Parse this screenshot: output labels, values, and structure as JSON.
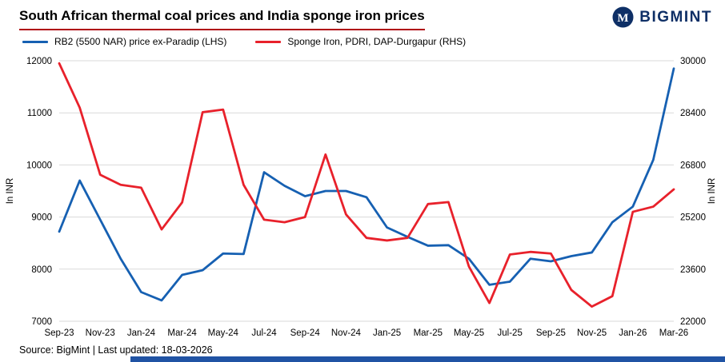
{
  "logo": {
    "text": "BIGMINT",
    "monogram": "M"
  },
  "title": "South African thermal coal prices and India sponge iron prices",
  "legend": [
    {
      "label": "RB2 (5500 NAR) price ex-Paradip (LHS)"
    },
    {
      "label": "Sponge Iron, PDRI, DAP-Durgapur (RHS)"
    }
  ],
  "footer": "Source: BigMint | Last updated: 18-03-2026",
  "colors": {
    "brand_navy": "#0e2f66",
    "coal_blue": "#1660b2",
    "sponge_red": "#e8212b",
    "title_underline": "#b00610",
    "grid": "#d9d9d9",
    "accent_bar": "#2053a4"
  },
  "chart_data": {
    "type": "line",
    "title": "South African thermal coal prices and India sponge iron prices",
    "x": [
      "Sep-23",
      "Oct-23",
      "Nov-23",
      "Dec-23",
      "Jan-24",
      "Feb-24",
      "Mar-24",
      "Apr-24",
      "May-24",
      "Jun-24",
      "Jul-24",
      "Aug-24",
      "Sep-24",
      "Oct-24",
      "Nov-24",
      "Dec-24",
      "Jan-25",
      "Feb-25",
      "Mar-25",
      "Apr-25",
      "May-25",
      "Jun-25",
      "Jul-25",
      "Aug-25",
      "Sep-25",
      "Oct-25",
      "Nov-25",
      "Dec-25",
      "Jan-26",
      "Feb-26",
      "Mar-26"
    ],
    "x_tick_every": 2,
    "series": [
      {
        "name": "RB2 (5500 NAR) price ex-Paradip (LHS)",
        "axis": "left",
        "color": "#1660b2",
        "values": [
          8720,
          9700,
          8950,
          8200,
          7560,
          7400,
          7890,
          7980,
          8300,
          8290,
          9860,
          9600,
          9400,
          9500,
          9500,
          9380,
          8800,
          8620,
          8450,
          8460,
          8200,
          7700,
          7760,
          8200,
          8150,
          8250,
          8320,
          8900,
          9200,
          10100,
          11850
        ]
      },
      {
        "name": "Sponge Iron, PDRI, DAP-Durgapur (RHS)",
        "axis": "right",
        "color": "#e8212b",
        "values": [
          29920,
          28560,
          26500,
          26190,
          26100,
          24820,
          25650,
          28420,
          28500,
          26190,
          25120,
          25040,
          25200,
          27120,
          25280,
          24560,
          24480,
          24560,
          25600,
          25660,
          23680,
          22560,
          24050,
          24130,
          24080,
          22960,
          22450,
          22770,
          25360,
          25520,
          26050
        ]
      }
    ],
    "left_axis": {
      "label": "In INR",
      "min": 7000,
      "max": 12000,
      "ticks": [
        7000,
        8000,
        9000,
        10000,
        11000,
        12000
      ]
    },
    "right_axis": {
      "label": "In INR",
      "min": 22000,
      "max": 30000,
      "ticks": [
        22000,
        23600,
        25200,
        26800,
        28400,
        30000
      ]
    },
    "grid": true,
    "legend_position": "top-left"
  }
}
